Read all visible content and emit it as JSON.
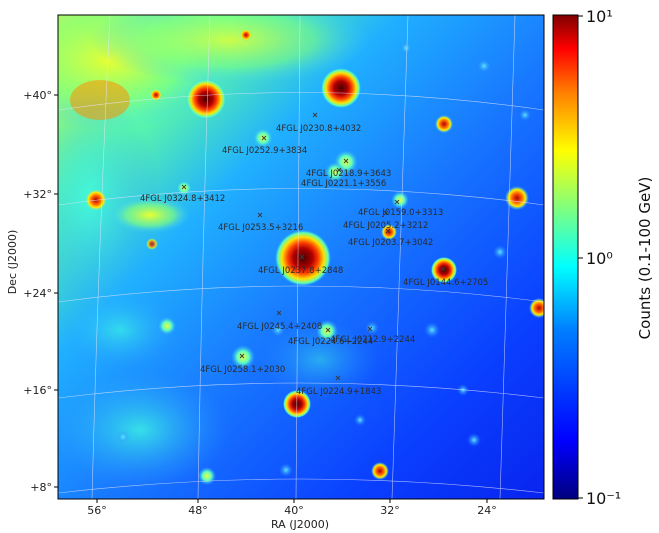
{
  "map": {
    "x_axis_label": "RA (J2000)",
    "y_axis_label": "Dec (J2000)",
    "x_ticks": [
      "56°",
      "48°",
      "40°",
      "32°",
      "24°"
    ],
    "y_ticks": [
      "+40°",
      "+32°",
      "+24°",
      "+16°",
      "+8°"
    ],
    "colorbar": {
      "label": "Counts (0.1-100 GeV)",
      "scale": "log",
      "top": "10¹",
      "mid": "10⁰",
      "bottom": "10⁻¹",
      "colormap": [
        "#00007f",
        "#0000ff",
        "#007fff",
        "#00ffff",
        "#7fff7f",
        "#ffff00",
        "#ff7f00",
        "#ff0000",
        "#7f0000"
      ]
    },
    "sources": [
      {
        "name": "4FGL J0230.8+4032"
      },
      {
        "name": "4FGL J0252.9+3834"
      },
      {
        "name": "4FGL J0218.9+3643"
      },
      {
        "name": "4FGL J0221.1+3556"
      },
      {
        "name": "4FGL J0324.8+3412"
      },
      {
        "name": "4FGL J0159.0+3313"
      },
      {
        "name": "4FGL J0253.5+3216"
      },
      {
        "name": "4FGL J0205.2+3212"
      },
      {
        "name": "4FGL J0203.7+3042"
      },
      {
        "name": "4FGL J0237.8+2848"
      },
      {
        "name": "4FGL J0144.6+2705"
      },
      {
        "name": "4FGL J0245.4+2408"
      },
      {
        "name": "4FGL J0224.6+2244"
      },
      {
        "name": "4FGL J0212.9+2244"
      },
      {
        "name": "4FGL J0258.1+2030"
      },
      {
        "name": "4FGL J0224.9+1843"
      }
    ]
  }
}
